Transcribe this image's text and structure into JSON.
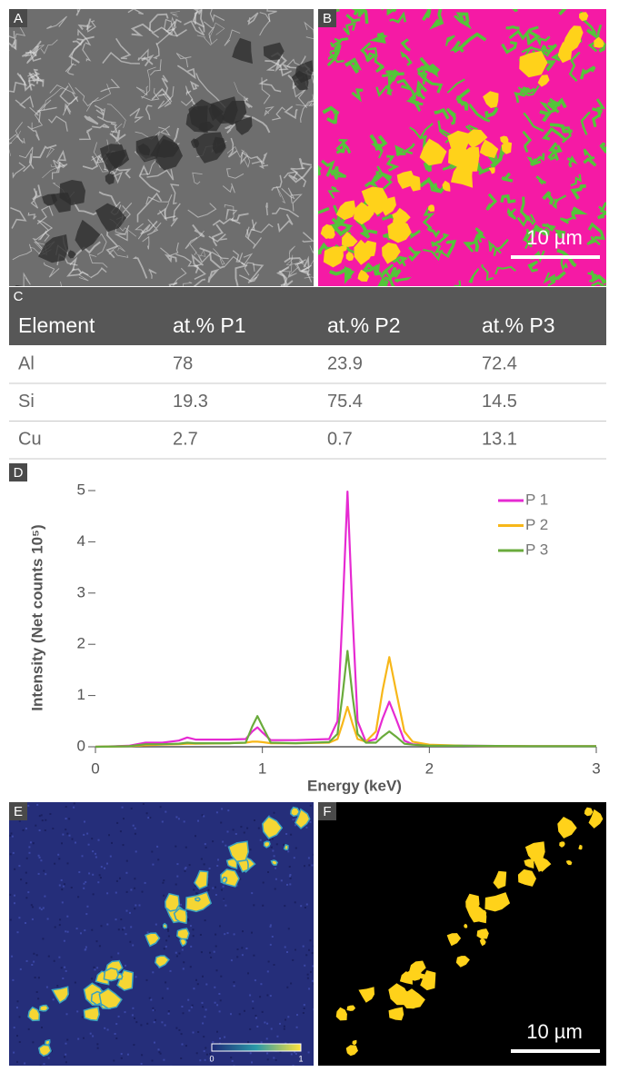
{
  "panel_labels": [
    "A",
    "B",
    "C",
    "D",
    "E",
    "F"
  ],
  "image_b_scale_bar": "10 µm",
  "image_f_scale_bar": "10 µm",
  "colorbar_ticks": [
    0,
    1
  ],
  "table": {
    "header": [
      "Element",
      "at.% P1",
      "at.% P2",
      "at.% P3"
    ],
    "rows": [
      [
        "Al",
        78,
        23.9,
        72.4
      ],
      [
        "Si",
        19.3,
        75.4,
        14.5
      ],
      [
        "Cu",
        2.7,
        0.7,
        13.1
      ]
    ]
  },
  "chart_data": {
    "type": "line",
    "xlabel": "Energy (keV)",
    "ylabel": "Intensity (Net counts 10⁵)",
    "x": [
      0,
      0.2,
      0.3,
      0.4,
      0.5,
      0.55,
      0.6,
      0.8,
      0.9,
      0.94,
      0.97,
      1.0,
      1.05,
      1.2,
      1.4,
      1.45,
      1.48,
      1.51,
      1.54,
      1.57,
      1.62,
      1.68,
      1.72,
      1.76,
      1.8,
      1.85,
      1.9,
      2.0,
      2.2,
      2.6,
      3.0
    ],
    "series": [
      {
        "name": "P 1",
        "color": "#e62ad2",
        "values": [
          0,
          0.02,
          0.08,
          0.08,
          0.12,
          0.18,
          0.14,
          0.14,
          0.15,
          0.3,
          0.38,
          0.28,
          0.13,
          0.13,
          0.15,
          0.5,
          2.6,
          4.98,
          2.6,
          0.5,
          0.1,
          0.15,
          0.55,
          0.88,
          0.55,
          0.12,
          0.05,
          0.03,
          0.02,
          0.01,
          0.01
        ]
      },
      {
        "name": "P 2",
        "color": "#f7b719",
        "values": [
          0,
          0.01,
          0.03,
          0.04,
          0.05,
          0.06,
          0.06,
          0.07,
          0.08,
          0.1,
          0.1,
          0.09,
          0.07,
          0.07,
          0.08,
          0.15,
          0.45,
          0.78,
          0.45,
          0.15,
          0.1,
          0.3,
          1.1,
          1.75,
          1.1,
          0.3,
          0.1,
          0.04,
          0.02,
          0.01,
          0.01
        ]
      },
      {
        "name": "P 3",
        "color": "#6aab3c",
        "values": [
          0,
          0.01,
          0.05,
          0.05,
          0.06,
          0.08,
          0.07,
          0.07,
          0.08,
          0.4,
          0.6,
          0.4,
          0.08,
          0.07,
          0.09,
          0.25,
          1.0,
          1.87,
          1.0,
          0.25,
          0.08,
          0.08,
          0.2,
          0.3,
          0.2,
          0.06,
          0.04,
          0.02,
          0.02,
          0.01,
          0.01
        ]
      }
    ],
    "xlim": [
      0,
      3
    ],
    "ylim": [
      0,
      5
    ],
    "xticks": [
      0,
      1,
      2,
      3
    ],
    "yticks": [
      0,
      1,
      2,
      3,
      4,
      5
    ],
    "legend": "upper right",
    "grid": false
  }
}
